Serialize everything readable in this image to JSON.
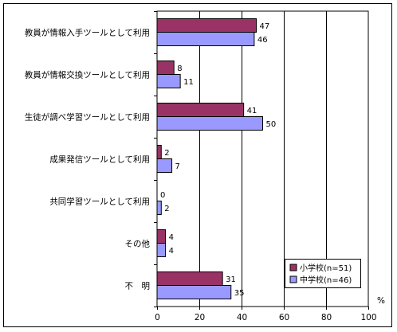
{
  "chart_data": {
    "type": "bar",
    "orientation": "horizontal",
    "categories": [
      "教員が情報入手ツールとして利用",
      "教員が情報交換ツールとして利用",
      "生徒が調べ学習ツールとして利用",
      "成果発信ツールとして利用",
      "共同学習ツールとして利用",
      "その他",
      "不　明"
    ],
    "series": [
      {
        "name": "小学校(n=51)",
        "values": [
          47,
          8,
          41,
          2,
          0,
          4,
          31
        ],
        "color": "#993366"
      },
      {
        "name": "中学校(n=46)",
        "values": [
          46,
          11,
          50,
          7,
          2,
          4,
          35
        ],
        "color": "#9999ff"
      }
    ],
    "xlim": [
      0,
      100
    ],
    "xticks": [
      0,
      20,
      40,
      60,
      80,
      100
    ],
    "xunit": "%",
    "grid": true,
    "legend_position": "bottom-right"
  }
}
